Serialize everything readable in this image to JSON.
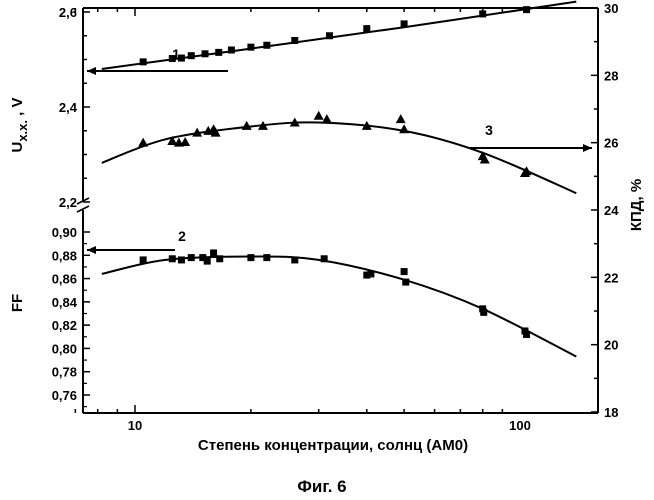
{
  "chart_data": {
    "type": "scatter",
    "caption": "Фиг. 6",
    "xlabel": "Степень концентрации, солнц (АМ0)",
    "xscale": "log",
    "xlim": [
      7,
      160
    ],
    "xticks": [
      {
        "value": 10,
        "label": "10"
      },
      {
        "value": 100,
        "label": "100"
      }
    ],
    "axes": {
      "left_upper": {
        "label": "Uх.х., V",
        "label_main": "U",
        "label_sub": "х.х.",
        "label_unit": " , V",
        "ylim": [
          2.2,
          2.66
        ],
        "ticks": [
          {
            "value": 2.2,
            "label": "2,2"
          },
          {
            "value": 2.4,
            "label": "2,4"
          },
          {
            "value": 2.6,
            "label": "2,6"
          }
        ]
      },
      "left_lower": {
        "label": "FF",
        "ylim": [
          0.75,
          0.92
        ],
        "ticks": [
          {
            "value": 0.76,
            "label": "0,76"
          },
          {
            "value": 0.78,
            "label": "0,78"
          },
          {
            "value": 0.8,
            "label": "0,80"
          },
          {
            "value": 0.82,
            "label": "0,82"
          },
          {
            "value": 0.84,
            "label": "0,84"
          },
          {
            "value": 0.86,
            "label": "0,86"
          },
          {
            "value": 0.88,
            "label": "0,88"
          },
          {
            "value": 0.9,
            "label": "0,90"
          }
        ]
      },
      "right": {
        "label": "КПД, %",
        "ylim": [
          18,
          30
        ],
        "ticks": [
          {
            "value": 18,
            "label": "18"
          },
          {
            "value": 20,
            "label": "20"
          },
          {
            "value": 22,
            "label": "22"
          },
          {
            "value": 24,
            "label": "24"
          },
          {
            "value": 26,
            "label": "26"
          },
          {
            "value": 28,
            "label": "28"
          },
          {
            "value": 30,
            "label": "30"
          }
        ]
      }
    },
    "series": [
      {
        "annotation": "1",
        "axis": "left_upper",
        "marker": "square",
        "points": [
          [
            10.5,
            2.495
          ],
          [
            12.5,
            2.502
          ],
          [
            13.2,
            2.503
          ],
          [
            14,
            2.508
          ],
          [
            15.2,
            2.512
          ],
          [
            16.5,
            2.515
          ],
          [
            17.8,
            2.52
          ],
          [
            20,
            2.526
          ],
          [
            22,
            2.53
          ],
          [
            26,
            2.54
          ],
          [
            32,
            2.55
          ],
          [
            40,
            2.565
          ],
          [
            50,
            2.575
          ],
          [
            80,
            2.596
          ],
          [
            104,
            2.605
          ]
        ],
        "fit": [
          [
            8.2,
            2.48
          ],
          [
            20,
            2.523
          ],
          [
            50,
            2.568
          ],
          [
            140,
            2.622
          ]
        ]
      },
      {
        "annotation": "2",
        "axis": "left_lower",
        "marker": "square",
        "points": [
          [
            10.5,
            0.876
          ],
          [
            12.5,
            0.877
          ],
          [
            13.2,
            0.876
          ],
          [
            14,
            0.878
          ],
          [
            15,
            0.878
          ],
          [
            15.4,
            0.875
          ],
          [
            16,
            0.882
          ],
          [
            16.6,
            0.877
          ],
          [
            20,
            0.878
          ],
          [
            22,
            0.878
          ],
          [
            26,
            0.876
          ],
          [
            31,
            0.877
          ],
          [
            40,
            0.863
          ],
          [
            41,
            0.864
          ],
          [
            50,
            0.866
          ],
          [
            50.5,
            0.857
          ],
          [
            80,
            0.834
          ],
          [
            80.5,
            0.831
          ],
          [
            103,
            0.815
          ],
          [
            104,
            0.812
          ]
        ],
        "fit": [
          [
            8.2,
            0.864
          ],
          [
            12,
            0.876
          ],
          [
            20,
            0.879
          ],
          [
            30,
            0.876
          ],
          [
            50,
            0.859
          ],
          [
            80,
            0.834
          ],
          [
            140,
            0.793
          ]
        ]
      },
      {
        "annotation": "3",
        "axis": "right",
        "marker": "triangle",
        "points": [
          [
            10.5,
            26.0
          ],
          [
            12.5,
            26.05
          ],
          [
            13,
            26.0
          ],
          [
            13.5,
            26.02
          ],
          [
            14.5,
            26.3
          ],
          [
            15.5,
            26.35
          ],
          [
            16,
            26.4
          ],
          [
            16.2,
            26.3
          ],
          [
            19.5,
            26.5
          ],
          [
            21.5,
            26.5
          ],
          [
            26,
            26.6
          ],
          [
            30,
            26.8
          ],
          [
            31.5,
            26.7
          ],
          [
            40,
            26.5
          ],
          [
            49,
            26.7
          ],
          [
            50,
            26.4
          ],
          [
            80,
            25.6
          ],
          [
            81,
            25.5
          ],
          [
            103,
            25.1
          ],
          [
            104,
            25.15
          ]
        ],
        "fit": [
          [
            8.2,
            25.4
          ],
          [
            12,
            26.1
          ],
          [
            20,
            26.48
          ],
          [
            30,
            26.6
          ],
          [
            50,
            26.35
          ],
          [
            80,
            25.7
          ],
          [
            140,
            24.5
          ]
        ]
      }
    ],
    "annotations": [
      {
        "text": "1",
        "direction": "left"
      },
      {
        "text": "2",
        "direction": "left"
      },
      {
        "text": "3",
        "direction": "right"
      }
    ]
  }
}
